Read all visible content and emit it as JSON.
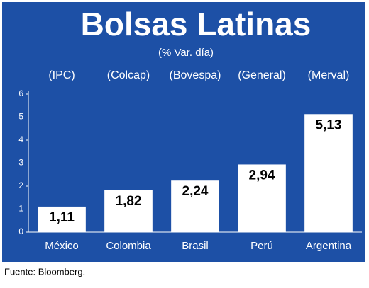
{
  "chart_data": {
    "type": "bar",
    "title": "Bolsas Latinas",
    "subtitle": "(% Var. día)",
    "index_labels": [
      "(IPC)",
      "(Colcap)",
      "(Bovespa)",
      "(General)",
      "(Merval)"
    ],
    "categories": [
      "México",
      "Colombia",
      "Brasil",
      "Perú",
      "Argentina"
    ],
    "values": [
      1.11,
      1.82,
      2.24,
      2.94,
      5.13
    ],
    "value_labels": [
      "1,11",
      "1,82",
      "2,24",
      "2,94",
      "5,13"
    ],
    "color": "#ffffff",
    "ylim": [
      0,
      6
    ],
    "yticks": [
      0,
      1,
      2,
      3,
      4,
      5,
      6
    ],
    "grid": false,
    "source": "Fuente: Bloomberg."
  }
}
